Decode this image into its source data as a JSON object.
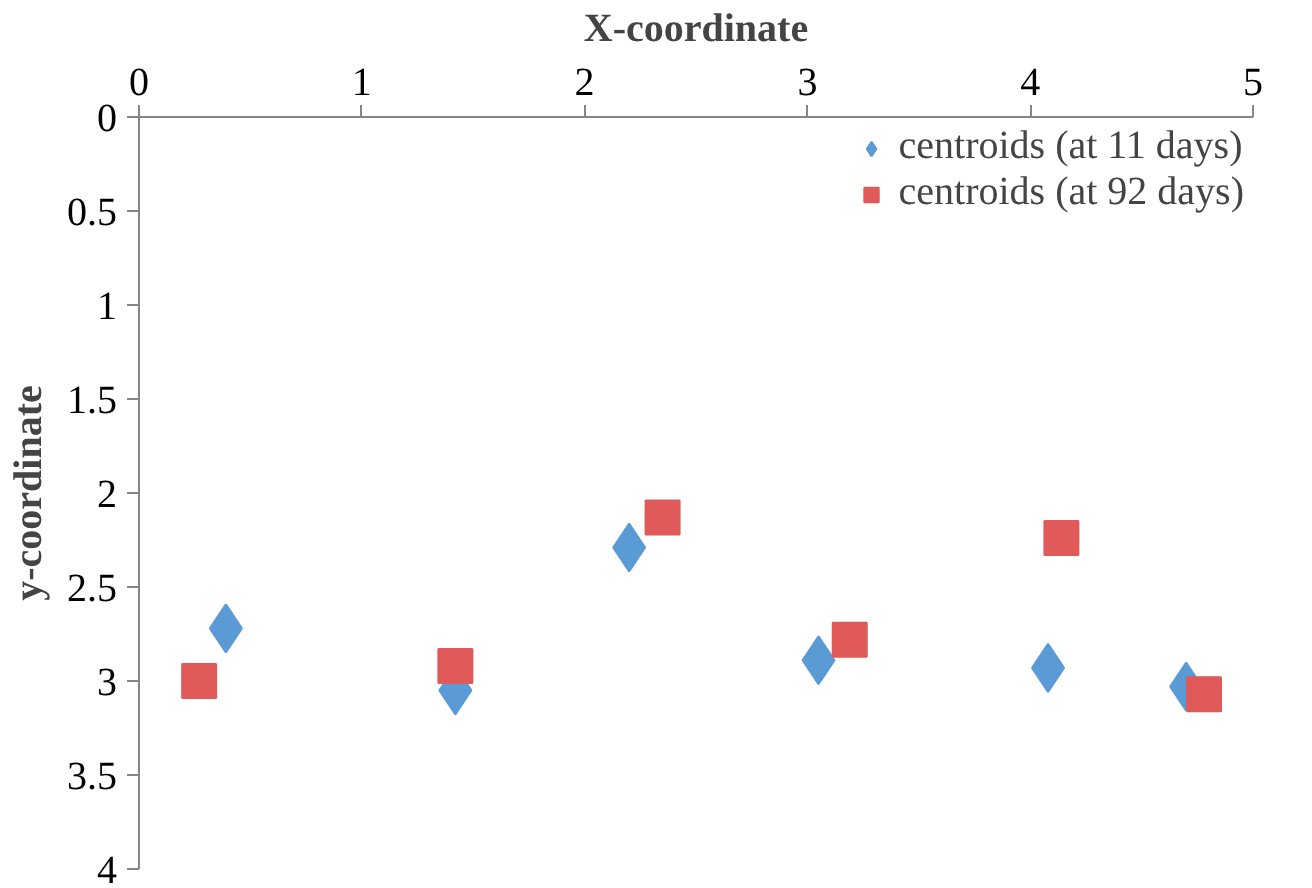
{
  "chart_data": {
    "type": "scatter",
    "xlabel": "X-coordinate",
    "ylabel": "y-coordinate",
    "xlim": [
      0,
      5
    ],
    "xticks": [
      0,
      1,
      2,
      3,
      4,
      5
    ],
    "ylim": [
      4,
      0
    ],
    "yticks": [
      0,
      0.5,
      1,
      1.5,
      2,
      2.5,
      3,
      3.5,
      4
    ],
    "grid": false,
    "legend": "top right",
    "series": [
      {
        "name": "centroids (at 11 days)",
        "color": "#5b9bd5",
        "marker": "diamond",
        "x": [
          0.39,
          1.42,
          2.2,
          3.05,
          4.08,
          4.7
        ],
        "values": [
          2.72,
          3.05,
          2.29,
          2.89,
          2.93,
          3.03
        ]
      },
      {
        "name": "centroids (at 92 days)",
        "color": "#e05a5a",
        "marker": "square",
        "x": [
          0.27,
          1.42,
          2.35,
          3.19,
          4.14,
          4.78
        ],
        "values": [
          3.0,
          2.92,
          2.13,
          2.78,
          2.24,
          3.07
        ]
      }
    ]
  }
}
